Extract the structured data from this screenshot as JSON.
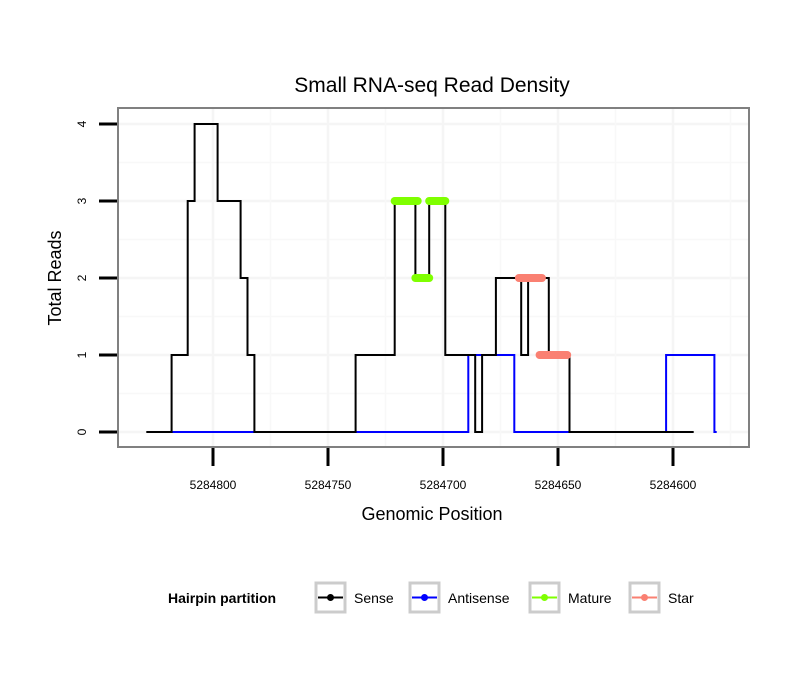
{
  "chart_data": {
    "type": "line",
    "title": "Small RNA-seq Read Density",
    "xlabel": "Genomic Position",
    "ylabel": "Total Reads",
    "x_reversed": true,
    "xlim": [
      5284818,
      5284573
    ],
    "ylim": [
      -0.2,
      4.2
    ],
    "xticks": [
      5284800,
      5284750,
      5284700,
      5284650,
      5284600
    ],
    "xtick_labels": [
      "5284800",
      "5284750",
      "5284700",
      "5284650",
      "5284600"
    ],
    "yticks": [
      0,
      1,
      2,
      3,
      4
    ],
    "ytick_labels": [
      "0",
      "1",
      "2",
      "3",
      "4"
    ],
    "grid": true,
    "legend": {
      "title": "Hairpin partition",
      "placement": "bottom",
      "entries": [
        "Sense",
        "Antisense",
        "Mature",
        "Star"
      ]
    },
    "series": [
      {
        "name": "Sense",
        "color": "#000000",
        "points": [
          [
            5284829,
            0
          ],
          [
            5284818,
            0
          ],
          [
            5284818,
            1
          ],
          [
            5284811,
            1
          ],
          [
            5284811,
            3
          ],
          [
            5284808,
            3
          ],
          [
            5284808,
            4
          ],
          [
            5284798,
            4
          ],
          [
            5284798,
            3
          ],
          [
            5284788,
            3
          ],
          [
            5284788,
            2
          ],
          [
            5284785,
            2
          ],
          [
            5284785,
            1
          ],
          [
            5284782,
            1
          ],
          [
            5284782,
            0
          ],
          [
            5284738,
            0
          ],
          [
            5284738,
            1
          ],
          [
            5284721,
            1
          ],
          [
            5284721,
            3
          ],
          [
            5284712,
            3
          ],
          [
            5284712,
            2
          ],
          [
            5284706,
            2
          ],
          [
            5284706,
            3
          ],
          [
            5284699,
            3
          ],
          [
            5284699,
            1
          ],
          [
            5284686,
            1
          ],
          [
            5284686,
            0
          ],
          [
            5284683,
            0
          ],
          [
            5284683,
            1
          ],
          [
            5284677,
            1
          ],
          [
            5284677,
            2
          ],
          [
            5284666,
            2
          ],
          [
            5284666,
            1
          ],
          [
            5284663,
            1
          ],
          [
            5284663,
            2
          ],
          [
            5284654,
            2
          ],
          [
            5284654,
            1
          ],
          [
            5284645,
            1
          ],
          [
            5284645,
            0
          ],
          [
            5284591,
            0
          ]
        ]
      },
      {
        "name": "Antisense",
        "color": "#0000ff",
        "points": [
          [
            5284818,
            0
          ],
          [
            5284689,
            0
          ],
          [
            5284689,
            1
          ],
          [
            5284669,
            1
          ],
          [
            5284669,
            0
          ],
          [
            5284603,
            0
          ],
          [
            5284603,
            1
          ],
          [
            5284582,
            1
          ],
          [
            5284582,
            0
          ],
          [
            5284581,
            0
          ]
        ]
      },
      {
        "name": "Mature",
        "color": "#7fff00",
        "segments": [
          {
            "x": [
              5284721,
              5284711
            ],
            "y": 3
          },
          {
            "x": [
              5284712,
              5284706
            ],
            "y": 2
          },
          {
            "x": [
              5284706,
              5284699
            ],
            "y": 3
          }
        ]
      },
      {
        "name": "Star",
        "color": "#fa8072",
        "segments": [
          {
            "x": [
              5284667,
              5284657
            ],
            "y": 2
          },
          {
            "x": [
              5284658,
              5284646
            ],
            "y": 1
          }
        ]
      }
    ]
  },
  "colors": {
    "panel_border": "#808080",
    "grid": "#f5f5f5",
    "legend_key_border": "#cccccc"
  }
}
